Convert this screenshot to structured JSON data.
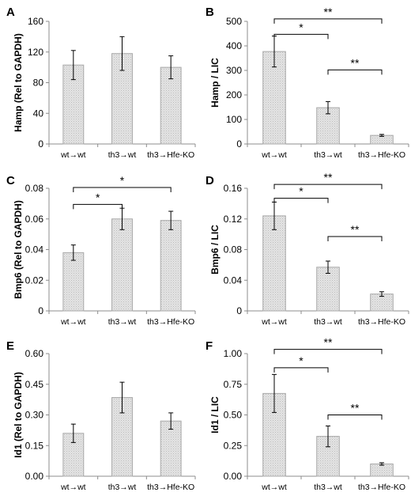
{
  "chart_data": [
    {
      "panel": "A",
      "type": "bar",
      "categories": [
        "wt→wt",
        "th3→wt",
        "th3→Hfe-KO"
      ],
      "values": [
        103,
        118,
        100
      ],
      "errors": [
        19,
        22,
        15
      ],
      "ylabel": "Hamp (Rel to GAPDH)",
      "ylim": [
        0,
        160
      ],
      "yticks": [
        "0",
        "40",
        "80",
        "120",
        "160"
      ],
      "significance": []
    },
    {
      "panel": "B",
      "type": "bar",
      "categories": [
        "wt→wt",
        "th3→wt",
        "th3→Hfe-KO"
      ],
      "values": [
        377,
        148,
        35
      ],
      "errors": [
        63,
        25,
        4
      ],
      "ylabel": "Hamp / LIC",
      "ylim": [
        0,
        500
      ],
      "yticks": [
        "0",
        "100",
        "200",
        "300",
        "400",
        "500"
      ],
      "significance": [
        {
          "from": 0,
          "to": 1,
          "label": "*",
          "y": 447
        },
        {
          "from": 0,
          "to": 2,
          "label": "**",
          "y": 510
        },
        {
          "from": 1,
          "to": 2,
          "label": "**",
          "y": 302
        }
      ]
    },
    {
      "panel": "C",
      "type": "bar",
      "categories": [
        "wt→wt",
        "th3→wt",
        "th3→Hfe-KO"
      ],
      "values": [
        0.038,
        0.06,
        0.059
      ],
      "errors": [
        0.005,
        0.007,
        0.006
      ],
      "ylabel": "Bmp6 (Rel to GAPDH)",
      "ylim": [
        0,
        0.08
      ],
      "yticks": [
        "0",
        "0.02",
        "0.04",
        "0.06",
        "0.08"
      ],
      "significance": [
        {
          "from": 0,
          "to": 1,
          "label": "*",
          "y": 0.0695
        },
        {
          "from": 0,
          "to": 2,
          "label": "*",
          "y": 0.0805
        }
      ]
    },
    {
      "panel": "D",
      "type": "bar",
      "categories": [
        "wt→wt",
        "th3→wt",
        "th3→Hfe-KO"
      ],
      "values": [
        0.124,
        0.057,
        0.022
      ],
      "errors": [
        0.018,
        0.008,
        0.003
      ],
      "ylabel": "Bmp6 / LIC",
      "ylim": [
        0,
        0.16
      ],
      "yticks": [
        "0",
        "0.04",
        "0.08",
        "0.12",
        "0.16"
      ],
      "significance": [
        {
          "from": 0,
          "to": 1,
          "label": "*",
          "y": 0.147
        },
        {
          "from": 0,
          "to": 2,
          "label": "**",
          "y": 0.165
        },
        {
          "from": 1,
          "to": 2,
          "label": "**",
          "y": 0.097
        }
      ]
    },
    {
      "panel": "E",
      "type": "bar",
      "categories": [
        "wt→wt",
        "th3→wt",
        "th3→Hfe-KO"
      ],
      "values": [
        0.21,
        0.385,
        0.27
      ],
      "errors": [
        0.045,
        0.075,
        0.04
      ],
      "ylabel": "Id1 (Rel to GAPDH)",
      "ylim": [
        0,
        0.6
      ],
      "yticks": [
        "0.00",
        "0.15",
        "0.30",
        "0.45",
        "0.60"
      ],
      "significance": []
    },
    {
      "panel": "F",
      "type": "bar",
      "categories": [
        "wt→wt",
        "th3→wt",
        "th3→Hfe-KO"
      ],
      "values": [
        0.675,
        0.325,
        0.1
      ],
      "errors": [
        0.155,
        0.085,
        0.01
      ],
      "ylabel": "Id1 / LIC",
      "ylim": [
        0,
        1.0
      ],
      "yticks": [
        "0.00",
        "0.25",
        "0.50",
        "0.75",
        "1.00"
      ],
      "significance": [
        {
          "from": 0,
          "to": 1,
          "label": "*",
          "y": 0.885
        },
        {
          "from": 0,
          "to": 2,
          "label": "**",
          "y": 1.035
        },
        {
          "from": 1,
          "to": 2,
          "label": "**",
          "y": 0.5
        }
      ]
    }
  ]
}
